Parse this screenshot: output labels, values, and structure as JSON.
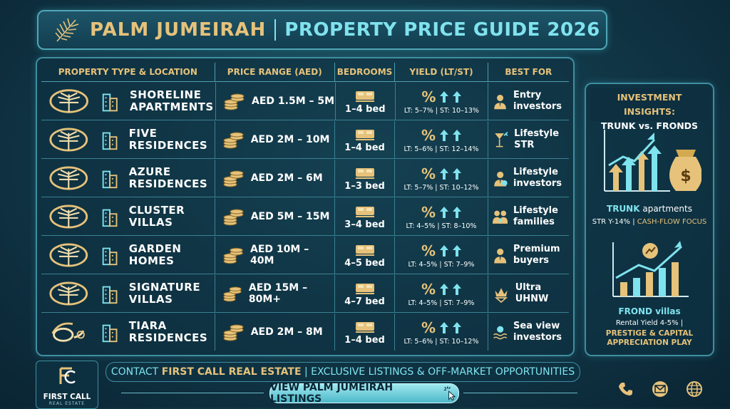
{
  "header": {
    "title_left": "PALM JUMEIRAH",
    "title_right": "PROPERTY PRICE GUIDE 2026"
  },
  "table": {
    "columns": [
      "PROPERTY TYPE & LOCATION",
      "PRICE RANGE (AED)",
      "BEDROOMS",
      "YIELD (LT/ST)",
      "BEST FOR"
    ],
    "rows": [
      {
        "name": "SHORELINE APARTMENTS",
        "price": "AED 1.5M – 5M",
        "beds": "1–4 bed",
        "yield_symbol": "%",
        "yield": "LT: 5–7% | ST: 10–13%",
        "best_for": "Entry investors",
        "icon": "person-tie-icon"
      },
      {
        "name": "FIVE RESIDENCES",
        "price": "AED 2M – 10M",
        "beds": "1–4 bed",
        "yield_symbol": "%",
        "yield": "LT: 5–6% | ST: 12–14%",
        "best_for": "Lifestyle STR",
        "icon": "cocktail-icon"
      },
      {
        "name": "AZURE RESIDENCES",
        "price": "AED 2M – 6M",
        "beds": "1–3 bed",
        "yield_symbol": "%",
        "yield": "LT: 5–7% | ST: 10–12%",
        "best_for": "Lifestyle investors",
        "icon": "investor-icon"
      },
      {
        "name": "CLUSTER VILLAS",
        "price": "AED 5M – 15M",
        "beds": "3–4 bed",
        "yield_symbol": "%",
        "yield": "LT: 4–5% | ST: 8–10%",
        "best_for": "Lifestyle families",
        "icon": "family-icon"
      },
      {
        "name": "GARDEN HOMES",
        "price": "AED 10M – 40M",
        "beds": "4–5 bed",
        "yield_symbol": "%",
        "yield": "LT: 4–5% | ST: 7–9%",
        "best_for": "Premium buyers",
        "icon": "person-tie-icon"
      },
      {
        "name": "SIGNATURE VILLAS",
        "price": "AED 15M – 80M+",
        "beds": "4–7 bed",
        "yield_symbol": "%",
        "yield": "LT: 4–5% | ST: 7–9%",
        "best_for": "Ultra UHNW",
        "icon": "crown-icon"
      },
      {
        "name": "TIARA RESIDENCES",
        "price": "AED 2M – 8M",
        "beds": "1–4 bed",
        "yield_symbol": "%",
        "yield": "LT: 5–6% | ST: 10–12%",
        "best_for": "Sea view investors",
        "icon": "sea-view-icon"
      }
    ]
  },
  "insights": {
    "title_line1": "INVESTMENT INSIGHTS:",
    "title_line2": "TRUNK vs. FRONDS",
    "trunk_label": "TRUNK",
    "trunk_label_rest": "apartments",
    "trunk_detail_a": "STR Y-14% |",
    "trunk_detail_b": "CASH-FLOW FOCUS",
    "frond_label": "FROND villas",
    "frond_detail": "Rental Yield 4-5% |",
    "frond_focus_line1": "PRESTIGE & CAPITAL",
    "frond_focus_line2": "APPRECIATION PLAY"
  },
  "footer": {
    "logo_name": "FIRST CALL",
    "logo_sub": "REAL ESTATE",
    "contact_prefix": "CONTACT",
    "contact_company": "FIRST CALL REAL ESTATE",
    "contact_suffix": "| EXCLUSIVE LISTINGS & OFF-MARKET OPPORTUNITIES",
    "cta_label": "VIEW PALM JUMEIRAH LISTINGS"
  },
  "colors": {
    "gold": "#e6c27a",
    "cyan": "#7fe3ee",
    "background": "#123a4a"
  }
}
